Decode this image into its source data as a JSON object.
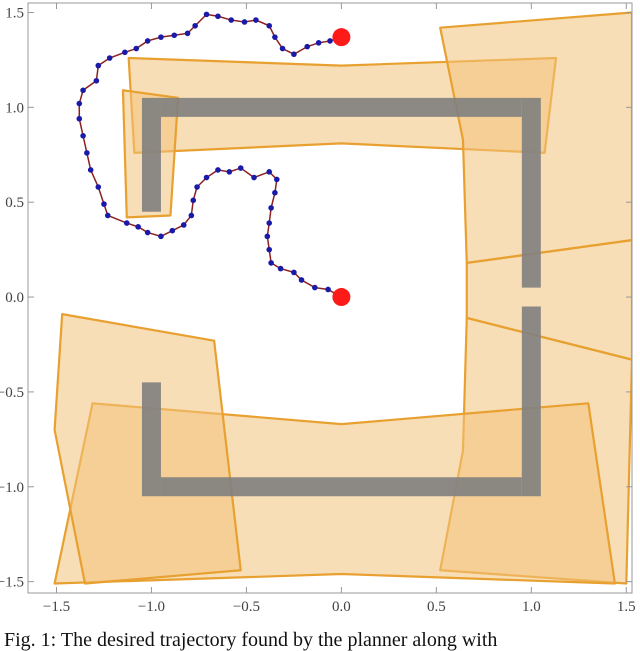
{
  "chart_data": {
    "type": "line",
    "xlim": [
      -1.65,
      1.53
    ],
    "ylim": [
      -1.56,
      1.55
    ],
    "xticks": [
      {
        "value": -1.5,
        "label": "−1.5"
      },
      {
        "value": -1.0,
        "label": "−1.0"
      },
      {
        "value": -0.5,
        "label": "−0.5"
      },
      {
        "value": 0.0,
        "label": "0.0"
      },
      0.5,
      {
        "value": 1.0,
        "label": "1.0"
      },
      1.5
    ],
    "yticks": [
      {
        "value": -1.5,
        "label": "−1.5"
      },
      {
        "value": -1.0,
        "label": "−1.0"
      },
      {
        "value": -0.5,
        "label": "−0.5"
      },
      {
        "value": 0.0,
        "label": "0.0"
      },
      0.5,
      {
        "value": 1.0,
        "label": "1.0"
      },
      1.5
    ],
    "regions_color": "#f3c27a",
    "regions_edge": "#e8a030",
    "regions": [
      {
        "x": [
          -1.12,
          0,
          1.13,
          1.07,
          0,
          -1.09
        ],
        "y": [
          1.26,
          1.22,
          1.26,
          0.76,
          0.81,
          0.76
        ]
      },
      {
        "x": [
          -1.15,
          -0.86,
          -0.9,
          -1.13
        ],
        "y": [
          1.09,
          1.05,
          0.43,
          0.42
        ]
      },
      {
        "x": [
          0.52,
          1.53,
          1.53,
          0.66,
          0.64
        ],
        "y": [
          1.42,
          1.5,
          0.3,
          0.18,
          0.83
        ]
      },
      {
        "x": [
          0.66,
          1.53,
          1.53,
          0.66
        ],
        "y": [
          0.18,
          0.3,
          -0.33,
          -0.11
        ]
      },
      {
        "x": [
          0.66,
          1.53,
          1.5,
          0.52,
          0.64
        ],
        "y": [
          -0.11,
          -0.33,
          -1.51,
          -1.44,
          -0.81
        ]
      },
      {
        "x": [
          -1.31,
          0,
          1.3,
          1.44,
          0,
          -1.51
        ],
        "y": [
          -0.56,
          -0.67,
          -0.56,
          -1.51,
          -1.46,
          -1.51
        ]
      },
      {
        "x": [
          -1.47,
          -0.67,
          -0.53,
          -1.35,
          -1.51
        ],
        "y": [
          -0.09,
          -0.23,
          -1.44,
          -1.51,
          -0.7
        ]
      }
    ],
    "obstacles_color": "#808080",
    "obstacles": [
      {
        "x": [
          -0.9,
          0.9
        ],
        "y": [
          1.0,
          1.0
        ]
      },
      {
        "x": [
          -1.0,
          -1.0
        ],
        "y": [
          0.5,
          1.0
        ]
      },
      {
        "x": [
          1.0,
          1.0
        ],
        "y": [
          0.1,
          1.0
        ]
      },
      {
        "x": [
          1.0,
          1.0
        ],
        "y": [
          -1.0,
          -0.1
        ]
      },
      {
        "x": [
          -0.9,
          0.9
        ],
        "y": [
          -1.0,
          -1.0
        ]
      },
      {
        "x": [
          -1.0,
          -1.0
        ],
        "y": [
          -1.0,
          -0.5
        ]
      }
    ],
    "series": [
      {
        "color": "#1a1aa8",
        "line_color": "#8b2020",
        "x": [
          0,
          -0.07,
          -0.14,
          -0.21,
          -0.25,
          -0.32,
          -0.37,
          -0.38,
          -0.39,
          -0.38,
          -0.37,
          -0.35,
          -0.34,
          -0.38,
          -0.46,
          -0.53,
          -0.59,
          -0.65,
          -0.71,
          -0.76,
          -0.78,
          -0.79,
          -0.83,
          -0.89,
          -0.95,
          -1.02,
          -1.07,
          -1.13,
          -1.23,
          -1.25,
          -1.28,
          -1.32,
          -1.34,
          -1.36,
          -1.38,
          -1.38,
          -1.36,
          -1.29,
          -1.28,
          -1.22,
          -1.14,
          -1.08,
          -1.02,
          -0.95,
          -0.88,
          -0.81,
          -0.77,
          -0.71,
          -0.65,
          -0.58,
          -0.51,
          -0.45,
          -0.38,
          -0.35,
          -0.31,
          -0.25,
          -0.18,
          -0.12,
          -0.06,
          0
        ],
        "values": [
          0,
          0.04,
          0.05,
          0.09,
          0.13,
          0.15,
          0.18,
          0.25,
          0.32,
          0.39,
          0.47,
          0.55,
          0.62,
          0.66,
          0.63,
          0.68,
          0.66,
          0.67,
          0.63,
          0.58,
          0.51,
          0.43,
          0.38,
          0.35,
          0.32,
          0.34,
          0.37,
          0.39,
          0.43,
          0.49,
          0.58,
          0.67,
          0.76,
          0.85,
          0.94,
          1.02,
          1.09,
          1.14,
          1.22,
          1.26,
          1.29,
          1.31,
          1.35,
          1.37,
          1.38,
          1.39,
          1.43,
          1.49,
          1.48,
          1.46,
          1.45,
          1.46,
          1.43,
          1.37,
          1.31,
          1.28,
          1.32,
          1.34,
          1.35,
          1.37
        ]
      },
      {
        "color": "#ff1a1a",
        "x": [
          0,
          0
        ],
        "values": [
          0,
          1.37
        ]
      }
    ]
  },
  "caption": "Fig. 1: The desired trajectory found by the planner along with"
}
